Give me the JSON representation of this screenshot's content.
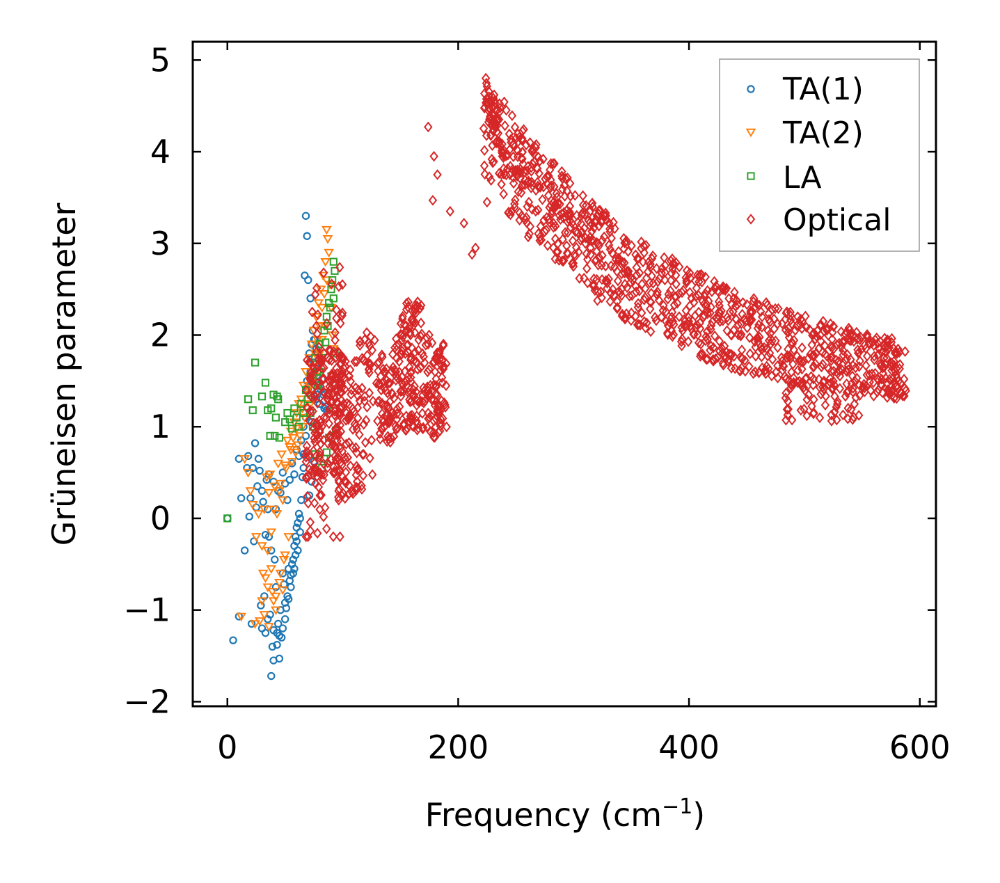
{
  "chart_data": {
    "type": "scatter",
    "title": "",
    "xlabel": "Frequency (cm",
    "xlabel_sup": "−1",
    "xlabel_close": ")",
    "ylabel": "Grüneisen parameter",
    "xlim": [
      -30,
      614
    ],
    "ylim": [
      -2.05,
      5.2
    ],
    "xticks": [
      0,
      200,
      400,
      600
    ],
    "xtick_labels": [
      "0",
      "200",
      "400",
      "600"
    ],
    "yticks": [
      -2,
      -1,
      0,
      1,
      2,
      3,
      4,
      5
    ],
    "ytick_labels": [
      "−2",
      "−1",
      "0",
      "1",
      "2",
      "3",
      "4",
      "5"
    ],
    "grid": false,
    "legend_position": "top-right",
    "series": [
      {
        "name": "TA(1)",
        "marker": "circle",
        "color": "#1f77b4",
        "points": [
          [
            0,
            0
          ],
          [
            5,
            -1.33
          ],
          [
            10,
            0.65
          ],
          [
            10,
            -1.07
          ],
          [
            12,
            0.22
          ],
          [
            15,
            -0.35
          ],
          [
            17,
            0.55
          ],
          [
            18,
            0.68
          ],
          [
            19,
            0.02
          ],
          [
            20,
            0.22
          ],
          [
            21,
            -1.15
          ],
          [
            22,
            0.55
          ],
          [
            23,
            -0.25
          ],
          [
            24,
            0.82
          ],
          [
            25,
            0.12
          ],
          [
            26,
            0.35
          ],
          [
            27,
            0.65
          ],
          [
            28,
            0.52
          ],
          [
            29,
            -0.95
          ],
          [
            30,
            0.3
          ],
          [
            30,
            -1.2
          ],
          [
            31,
            0.18
          ],
          [
            32,
            -0.85
          ],
          [
            33,
            -0.18
          ],
          [
            34,
            0.42
          ],
          [
            35,
            0.1
          ],
          [
            36,
            -0.2
          ],
          [
            37,
            -1.05
          ],
          [
            38,
            -1.72
          ],
          [
            38,
            -0.35
          ],
          [
            39,
            -1.4
          ],
          [
            40,
            -1.55
          ],
          [
            41,
            -0.45
          ],
          [
            42,
            -0.75
          ],
          [
            43,
            -1.25
          ],
          [
            44,
            -1.15
          ],
          [
            45,
            -1.53
          ],
          [
            46,
            -1.0
          ],
          [
            47,
            -1.3
          ],
          [
            48,
            -0.6
          ],
          [
            49,
            -0.72
          ],
          [
            50,
            -0.92
          ],
          [
            51,
            -0.98
          ],
          [
            52,
            -0.85
          ],
          [
            53,
            -0.55
          ],
          [
            54,
            -0.68
          ],
          [
            55,
            -0.62
          ],
          [
            56,
            -0.5
          ],
          [
            57,
            -0.45
          ],
          [
            58,
            -0.3
          ],
          [
            59,
            -0.2
          ],
          [
            60,
            -0.1
          ],
          [
            61,
            -0.05
          ],
          [
            62,
            0.05
          ],
          [
            63,
            0.0
          ],
          [
            64,
            0.2
          ],
          [
            65,
            0.45
          ],
          [
            66,
            0.7
          ],
          [
            67,
            2.65
          ],
          [
            68,
            3.3
          ],
          [
            68,
            0.9
          ],
          [
            69,
            3.08
          ],
          [
            70,
            2.6
          ],
          [
            71,
            0.25
          ],
          [
            72,
            2.4
          ],
          [
            73,
            1.05
          ],
          [
            74,
            1.55
          ],
          [
            75,
            1.7
          ],
          [
            76,
            1.95
          ],
          [
            77,
            1.3
          ],
          [
            78,
            1.6
          ],
          [
            79,
            1.45
          ],
          [
            80,
            1.25
          ],
          [
            81,
            1.4
          ],
          [
            82,
            1.52
          ],
          [
            83,
            1.35
          ],
          [
            84,
            1.2
          ],
          [
            85,
            1.22
          ],
          [
            86,
            1.18
          ],
          [
            71,
            1.8
          ],
          [
            73,
            1.9
          ],
          [
            75,
            1.95
          ],
          [
            77,
            1.85
          ],
          [
            80,
            1.7
          ],
          [
            74,
            2.05
          ],
          [
            72,
            1.6
          ],
          [
            76,
            1.5
          ],
          [
            78,
            1.35
          ],
          [
            70,
            1.4
          ],
          [
            69,
            1.5
          ],
          [
            40,
            0.4
          ],
          [
            44,
            0.3
          ],
          [
            48,
            0.5
          ],
          [
            52,
            0.2
          ],
          [
            56,
            0.6
          ],
          [
            60,
            0.75
          ],
          [
            64,
            0.85
          ],
          [
            66,
            1.0
          ],
          [
            68,
            1.1
          ],
          [
            70,
            1.2
          ],
          [
            36,
            0.48
          ],
          [
            42,
            0.1
          ],
          [
            46,
            0.28
          ],
          [
            50,
            0.38
          ],
          [
            54,
            0.42
          ],
          [
            58,
            0.48
          ],
          [
            62,
            0.68
          ],
          [
            66,
            0.55
          ],
          [
            73,
            0.4
          ],
          [
            75,
            0.62
          ],
          [
            57,
            -0.6
          ],
          [
            55,
            -0.75
          ],
          [
            53,
            -0.88
          ],
          [
            50,
            -1.1
          ],
          [
            48,
            -1.2
          ],
          [
            45,
            -1.28
          ],
          [
            43,
            -1.38
          ],
          [
            40,
            -1.22
          ],
          [
            35,
            -1.1
          ],
          [
            33,
            -1.25
          ],
          [
            61,
            -0.35
          ],
          [
            63,
            -0.15
          ],
          [
            60,
            -0.25
          ],
          [
            59,
            -0.4
          ],
          [
            58,
            -0.55
          ]
        ]
      },
      {
        "name": "TA(2)",
        "marker": "triangle-down",
        "color": "#ff7f0e",
        "points": [
          [
            12,
            -1.07
          ],
          [
            15,
            0.65
          ],
          [
            18,
            0.5
          ],
          [
            20,
            0.3
          ],
          [
            22,
            0.15
          ],
          [
            24,
            -1.15
          ],
          [
            25,
            -0.2
          ],
          [
            27,
            0.05
          ],
          [
            28,
            -1.12
          ],
          [
            30,
            -0.3
          ],
          [
            31,
            -0.6
          ],
          [
            32,
            0.1
          ],
          [
            34,
            0.45
          ],
          [
            35,
            -0.75
          ],
          [
            36,
            0.28
          ],
          [
            37,
            0.48
          ],
          [
            38,
            -0.55
          ],
          [
            39,
            -0.8
          ],
          [
            40,
            -0.9
          ],
          [
            41,
            0.35
          ],
          [
            42,
            -1.0
          ],
          [
            43,
            0.05
          ],
          [
            44,
            0.6
          ],
          [
            45,
            -0.7
          ],
          [
            46,
            0.38
          ],
          [
            47,
            0.7
          ],
          [
            48,
            0.2
          ],
          [
            49,
            -0.45
          ],
          [
            50,
            -0.4
          ],
          [
            51,
            0.55
          ],
          [
            52,
            0.85
          ],
          [
            53,
            -0.2
          ],
          [
            54,
            0.78
          ],
          [
            55,
            0.95
          ],
          [
            56,
            0.62
          ],
          [
            57,
            0.88
          ],
          [
            58,
            1.05
          ],
          [
            59,
            0.72
          ],
          [
            60,
            1.15
          ],
          [
            61,
            0.8
          ],
          [
            62,
            1.25
          ],
          [
            63,
            0.9
          ],
          [
            64,
            1.3
          ],
          [
            65,
            1.0
          ],
          [
            66,
            1.45
          ],
          [
            67,
            1.1
          ],
          [
            68,
            1.6
          ],
          [
            69,
            1.2
          ],
          [
            70,
            1.35
          ],
          [
            71,
            1.75
          ],
          [
            72,
            1.25
          ],
          [
            73,
            1.9
          ],
          [
            74,
            1.4
          ],
          [
            75,
            2.05
          ],
          [
            76,
            1.55
          ],
          [
            77,
            2.2
          ],
          [
            78,
            1.65
          ],
          [
            79,
            2.35
          ],
          [
            80,
            1.8
          ],
          [
            81,
            2.5
          ],
          [
            82,
            1.95
          ],
          [
            83,
            2.65
          ],
          [
            84,
            2.1
          ],
          [
            85,
            2.8
          ],
          [
            86,
            3.15
          ],
          [
            87,
            3.05
          ],
          [
            88,
            2.9
          ],
          [
            89,
            2.55
          ],
          [
            90,
            2.3
          ],
          [
            91,
            2.0
          ],
          [
            92,
            1.85
          ],
          [
            86,
            2.6
          ],
          [
            84,
            2.45
          ],
          [
            82,
            2.3
          ],
          [
            80,
            2.1
          ],
          [
            78,
            1.95
          ],
          [
            76,
            1.8
          ],
          [
            74,
            1.65
          ],
          [
            72,
            1.5
          ],
          [
            70,
            1.42
          ],
          [
            65,
            1.2
          ],
          [
            60,
            0.98
          ],
          [
            55,
            0.75
          ],
          [
            50,
            0.58
          ],
          [
            45,
            0.3
          ],
          [
            40,
            0.1
          ],
          [
            38,
            -0.15
          ],
          [
            35,
            -0.35
          ],
          [
            33,
            -0.65
          ],
          [
            30,
            -0.9
          ],
          [
            32,
            -1.05
          ],
          [
            36,
            -1.18
          ],
          [
            42,
            -0.85
          ],
          [
            46,
            -0.6
          ],
          [
            48,
            -0.78
          ]
        ]
      },
      {
        "name": "LA",
        "marker": "square",
        "color": "#2ca02c",
        "points": [
          [
            0,
            0
          ],
          [
            18,
            1.3
          ],
          [
            22,
            1.18
          ],
          [
            24,
            1.7
          ],
          [
            30,
            1.33
          ],
          [
            33,
            1.48
          ],
          [
            35,
            1.18
          ],
          [
            37,
            0.9
          ],
          [
            38,
            1.2
          ],
          [
            40,
            1.35
          ],
          [
            41,
            0.9
          ],
          [
            42,
            1.1
          ],
          [
            43,
            1.33
          ],
          [
            44,
            1.3
          ],
          [
            45,
            0.88
          ],
          [
            50,
            1.05
          ],
          [
            52,
            1.15
          ],
          [
            54,
            1.08
          ],
          [
            56,
            0.98
          ],
          [
            58,
            1.2
          ],
          [
            60,
            1.1
          ],
          [
            62,
            1.0
          ],
          [
            64,
            1.25
          ],
          [
            66,
            1.15
          ],
          [
            68,
            1.4
          ],
          [
            70,
            1.3
          ],
          [
            72,
            1.55
          ],
          [
            74,
            1.5
          ],
          [
            76,
            1.75
          ],
          [
            78,
            1.6
          ],
          [
            80,
            1.9
          ],
          [
            82,
            1.75
          ],
          [
            84,
            2.05
          ],
          [
            85,
            1.92
          ],
          [
            86,
            2.2
          ],
          [
            87,
            2.1
          ],
          [
            88,
            2.35
          ],
          [
            89,
            2.3
          ],
          [
            90,
            2.5
          ],
          [
            91,
            2.6
          ],
          [
            92,
            2.8
          ],
          [
            92,
            2.4
          ],
          [
            93,
            2.7
          ],
          [
            93,
            1.8
          ],
          [
            93,
            1.45
          ],
          [
            94,
            0.96
          ],
          [
            92,
            1.2
          ],
          [
            90,
            1.55
          ],
          [
            88,
            0.88
          ],
          [
            86,
            0.72
          ],
          [
            84,
            0.65
          ],
          [
            82,
            0.55
          ],
          [
            80,
            1.6
          ],
          [
            78,
            1.45
          ],
          [
            76,
            0.7
          ],
          [
            74,
            1.0
          ],
          [
            72,
            1.15
          ]
        ]
      },
      {
        "name": "Optical",
        "marker": "diamond",
        "color": "#d62728",
        "generator": "optical"
      }
    ]
  }
}
